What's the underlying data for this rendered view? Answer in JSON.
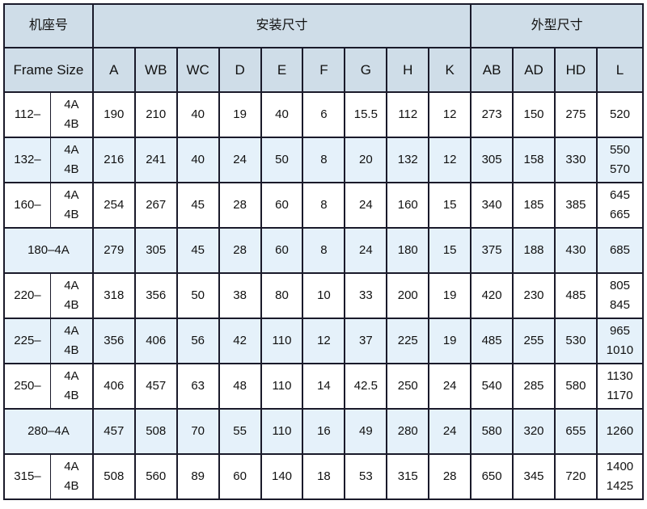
{
  "header": {
    "frame_cn": "机座号",
    "install_cn": "安装尺寸",
    "outline_cn": "外型尺寸",
    "frame_en": "Frame Size",
    "install_cols": [
      "A",
      "WB",
      "WC",
      "D",
      "E",
      "F",
      "G",
      "H",
      "K"
    ],
    "outline_cols": [
      "AB",
      "AD",
      "HD",
      "L"
    ]
  },
  "rows": [
    {
      "frame": "112–",
      "variants": [
        "4A",
        "4B"
      ],
      "values": [
        "190",
        "210",
        "40",
        "19",
        "40",
        "6",
        "15.5",
        "112",
        "12",
        "273",
        "150",
        "275"
      ],
      "L": [
        "520"
      ]
    },
    {
      "frame": "132–",
      "variants": [
        "4A",
        "4B"
      ],
      "values": [
        "216",
        "241",
        "40",
        "24",
        "50",
        "8",
        "20",
        "132",
        "12",
        "305",
        "158",
        "330"
      ],
      "L": [
        "550",
        "570"
      ]
    },
    {
      "frame": "160–",
      "variants": [
        "4A",
        "4B"
      ],
      "values": [
        "254",
        "267",
        "45",
        "28",
        "60",
        "8",
        "24",
        "160",
        "15",
        "340",
        "185",
        "385"
      ],
      "L": [
        "645",
        "665"
      ]
    },
    {
      "frame": "180–4A",
      "variants": null,
      "values": [
        "279",
        "305",
        "45",
        "28",
        "60",
        "8",
        "24",
        "180",
        "15",
        "375",
        "188",
        "430"
      ],
      "L": [
        "685"
      ]
    },
    {
      "frame": "220–",
      "variants": [
        "4A",
        "4B"
      ],
      "values": [
        "318",
        "356",
        "50",
        "38",
        "80",
        "10",
        "33",
        "200",
        "19",
        "420",
        "230",
        "485"
      ],
      "L": [
        "805",
        "845"
      ]
    },
    {
      "frame": "225–",
      "variants": [
        "4A",
        "4B"
      ],
      "values": [
        "356",
        "406",
        "56",
        "42",
        "110",
        "12",
        "37",
        "225",
        "19",
        "485",
        "255",
        "530"
      ],
      "L": [
        "965",
        "1010"
      ]
    },
    {
      "frame": "250–",
      "variants": [
        "4A",
        "4B"
      ],
      "values": [
        "406",
        "457",
        "63",
        "48",
        "110",
        "14",
        "42.5",
        "250",
        "24",
        "540",
        "285",
        "580"
      ],
      "L": [
        "1130",
        "1170"
      ]
    },
    {
      "frame": "280–4A",
      "variants": null,
      "values": [
        "457",
        "508",
        "70",
        "55",
        "110",
        "16",
        "49",
        "280",
        "24",
        "580",
        "320",
        "655"
      ],
      "L": [
        "1260"
      ]
    },
    {
      "frame": "315–",
      "variants": [
        "4A",
        "4B"
      ],
      "values": [
        "508",
        "560",
        "89",
        "60",
        "140",
        "18",
        "53",
        "315",
        "28",
        "650",
        "345",
        "720"
      ],
      "L": [
        "1400",
        "1425"
      ]
    }
  ],
  "colors": {
    "header_bg": "#cfdde8",
    "alt_row_bg": "#e5f1fa",
    "border": "#1a1a2a"
  }
}
